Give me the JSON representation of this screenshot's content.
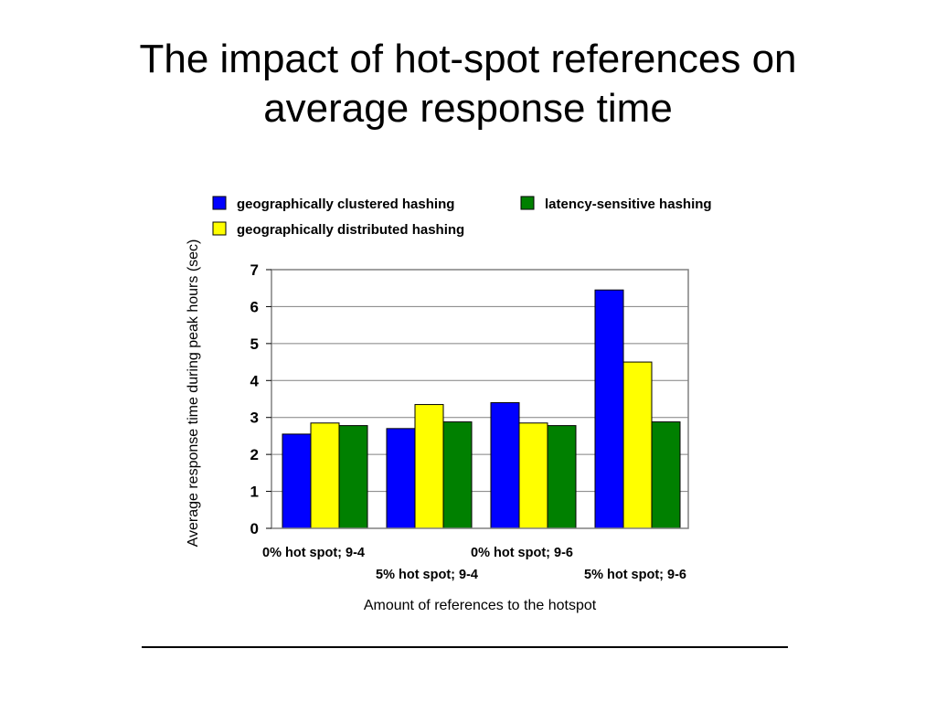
{
  "slide": {
    "title_line1": "The impact of hot-spot references on",
    "title_line2": "average response time"
  },
  "chart_data": {
    "type": "bar",
    "categories": [
      "0% hot spot; 9-4",
      "5% hot spot; 9-4",
      "0% hot spot; 9-6",
      "5% hot spot; 9-6"
    ],
    "series": [
      {
        "name": "geographically clustered hashing",
        "color": "#0000ff",
        "values": [
          2.55,
          2.7,
          3.4,
          6.45
        ]
      },
      {
        "name": "geographically distributed hashing",
        "color": "#ffff00",
        "values": [
          2.85,
          3.35,
          2.85,
          4.5
        ]
      },
      {
        "name": "latency-sensitive hashing",
        "color": "#008000",
        "values": [
          2.78,
          2.88,
          2.78,
          2.88
        ]
      }
    ],
    "xlabel": "Amount of references to the hotspot",
    "ylabel": "Average response time during peak hours (sec)",
    "ylim": [
      0,
      7
    ],
    "yticks": [
      "0",
      "1",
      "2",
      "3",
      "4",
      "5",
      "6",
      "7"
    ],
    "grid": true,
    "legend_position": "top"
  }
}
